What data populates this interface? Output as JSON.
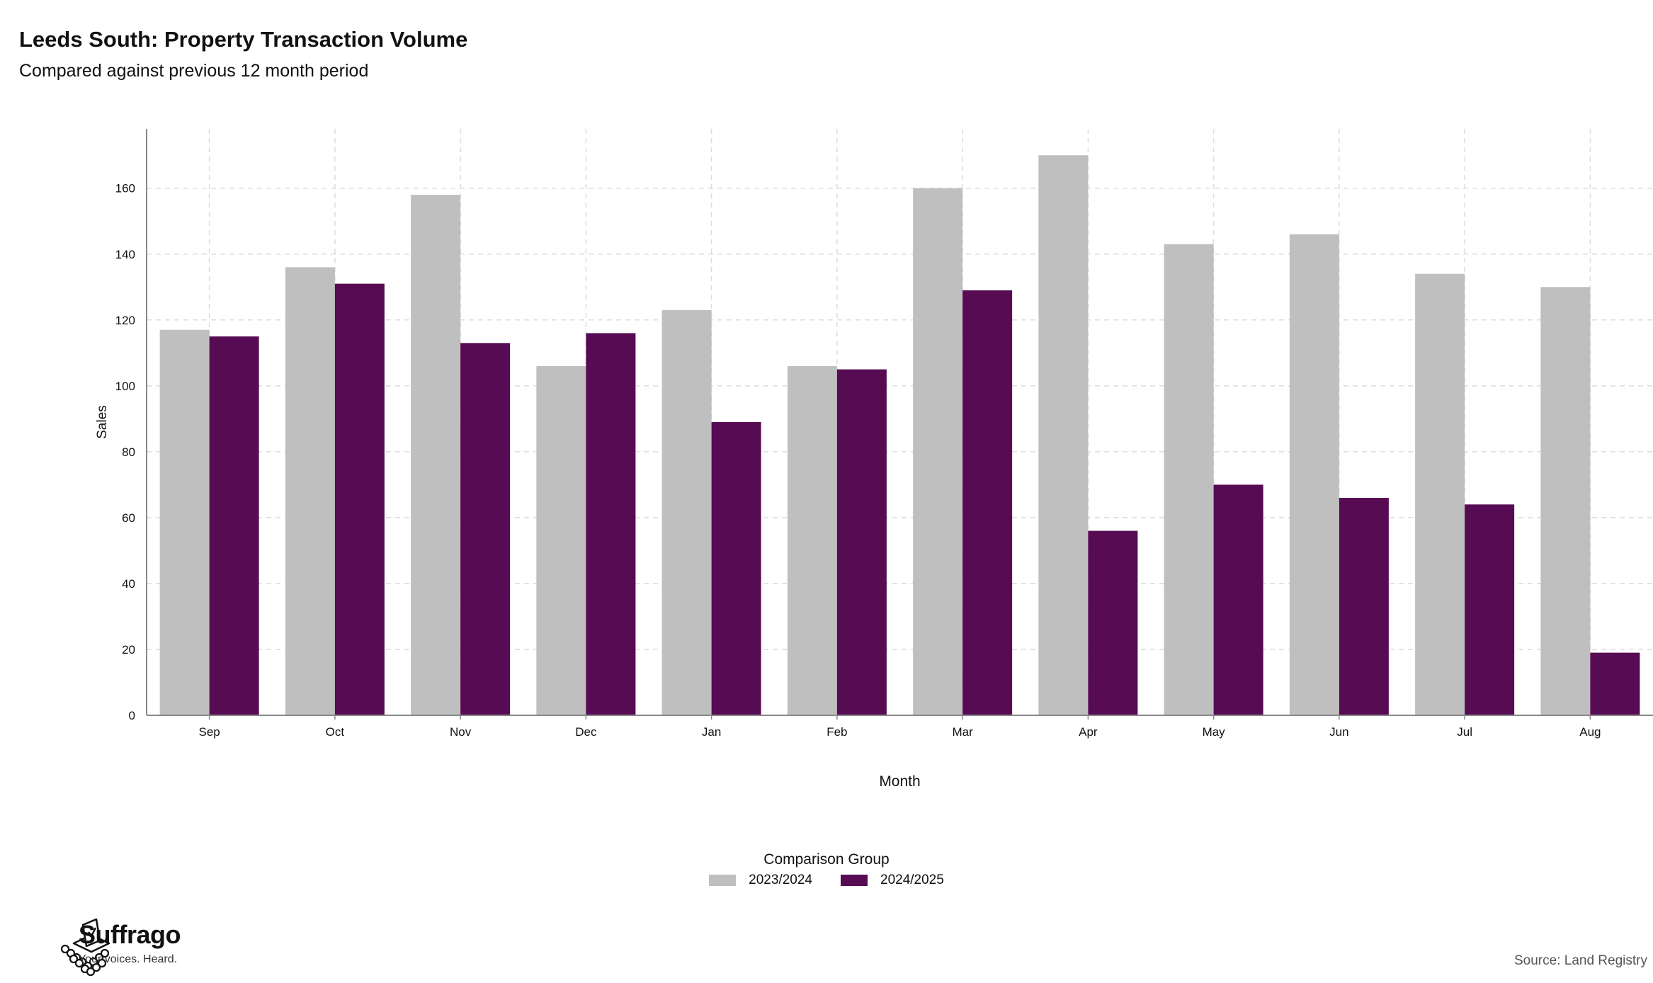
{
  "title": "Leeds South: Property Transaction Volume",
  "subtitle": "Compared against previous 12 month period",
  "colors": {
    "prev": "#bfbfbf",
    "curr": "#560b52"
  },
  "legend": {
    "title": "Comparison Group",
    "items": [
      "2023/2024",
      "2024/2025"
    ]
  },
  "brand": {
    "name": "Suffrago",
    "tagline": "Your voices. Heard."
  },
  "source": "Source: Land Registry",
  "chart_data": {
    "type": "bar",
    "xlabel": "Month",
    "ylabel": "Sales",
    "ylim": [
      0,
      178
    ],
    "yticks": [
      0,
      20,
      40,
      60,
      80,
      100,
      120,
      140,
      160
    ],
    "grid": true,
    "legend_position": "bottom",
    "categories": [
      "Sep",
      "Oct",
      "Nov",
      "Dec",
      "Jan",
      "Feb",
      "Mar",
      "Apr",
      "May",
      "Jun",
      "Jul",
      "Aug"
    ],
    "series": [
      {
        "name": "2023/2024",
        "values": [
          117,
          136,
          158,
          106,
          123,
          106,
          160,
          170,
          143,
          146,
          134,
          130
        ]
      },
      {
        "name": "2024/2025",
        "values": [
          115,
          131,
          113,
          116,
          89,
          105,
          129,
          56,
          70,
          66,
          64,
          19
        ]
      }
    ]
  }
}
